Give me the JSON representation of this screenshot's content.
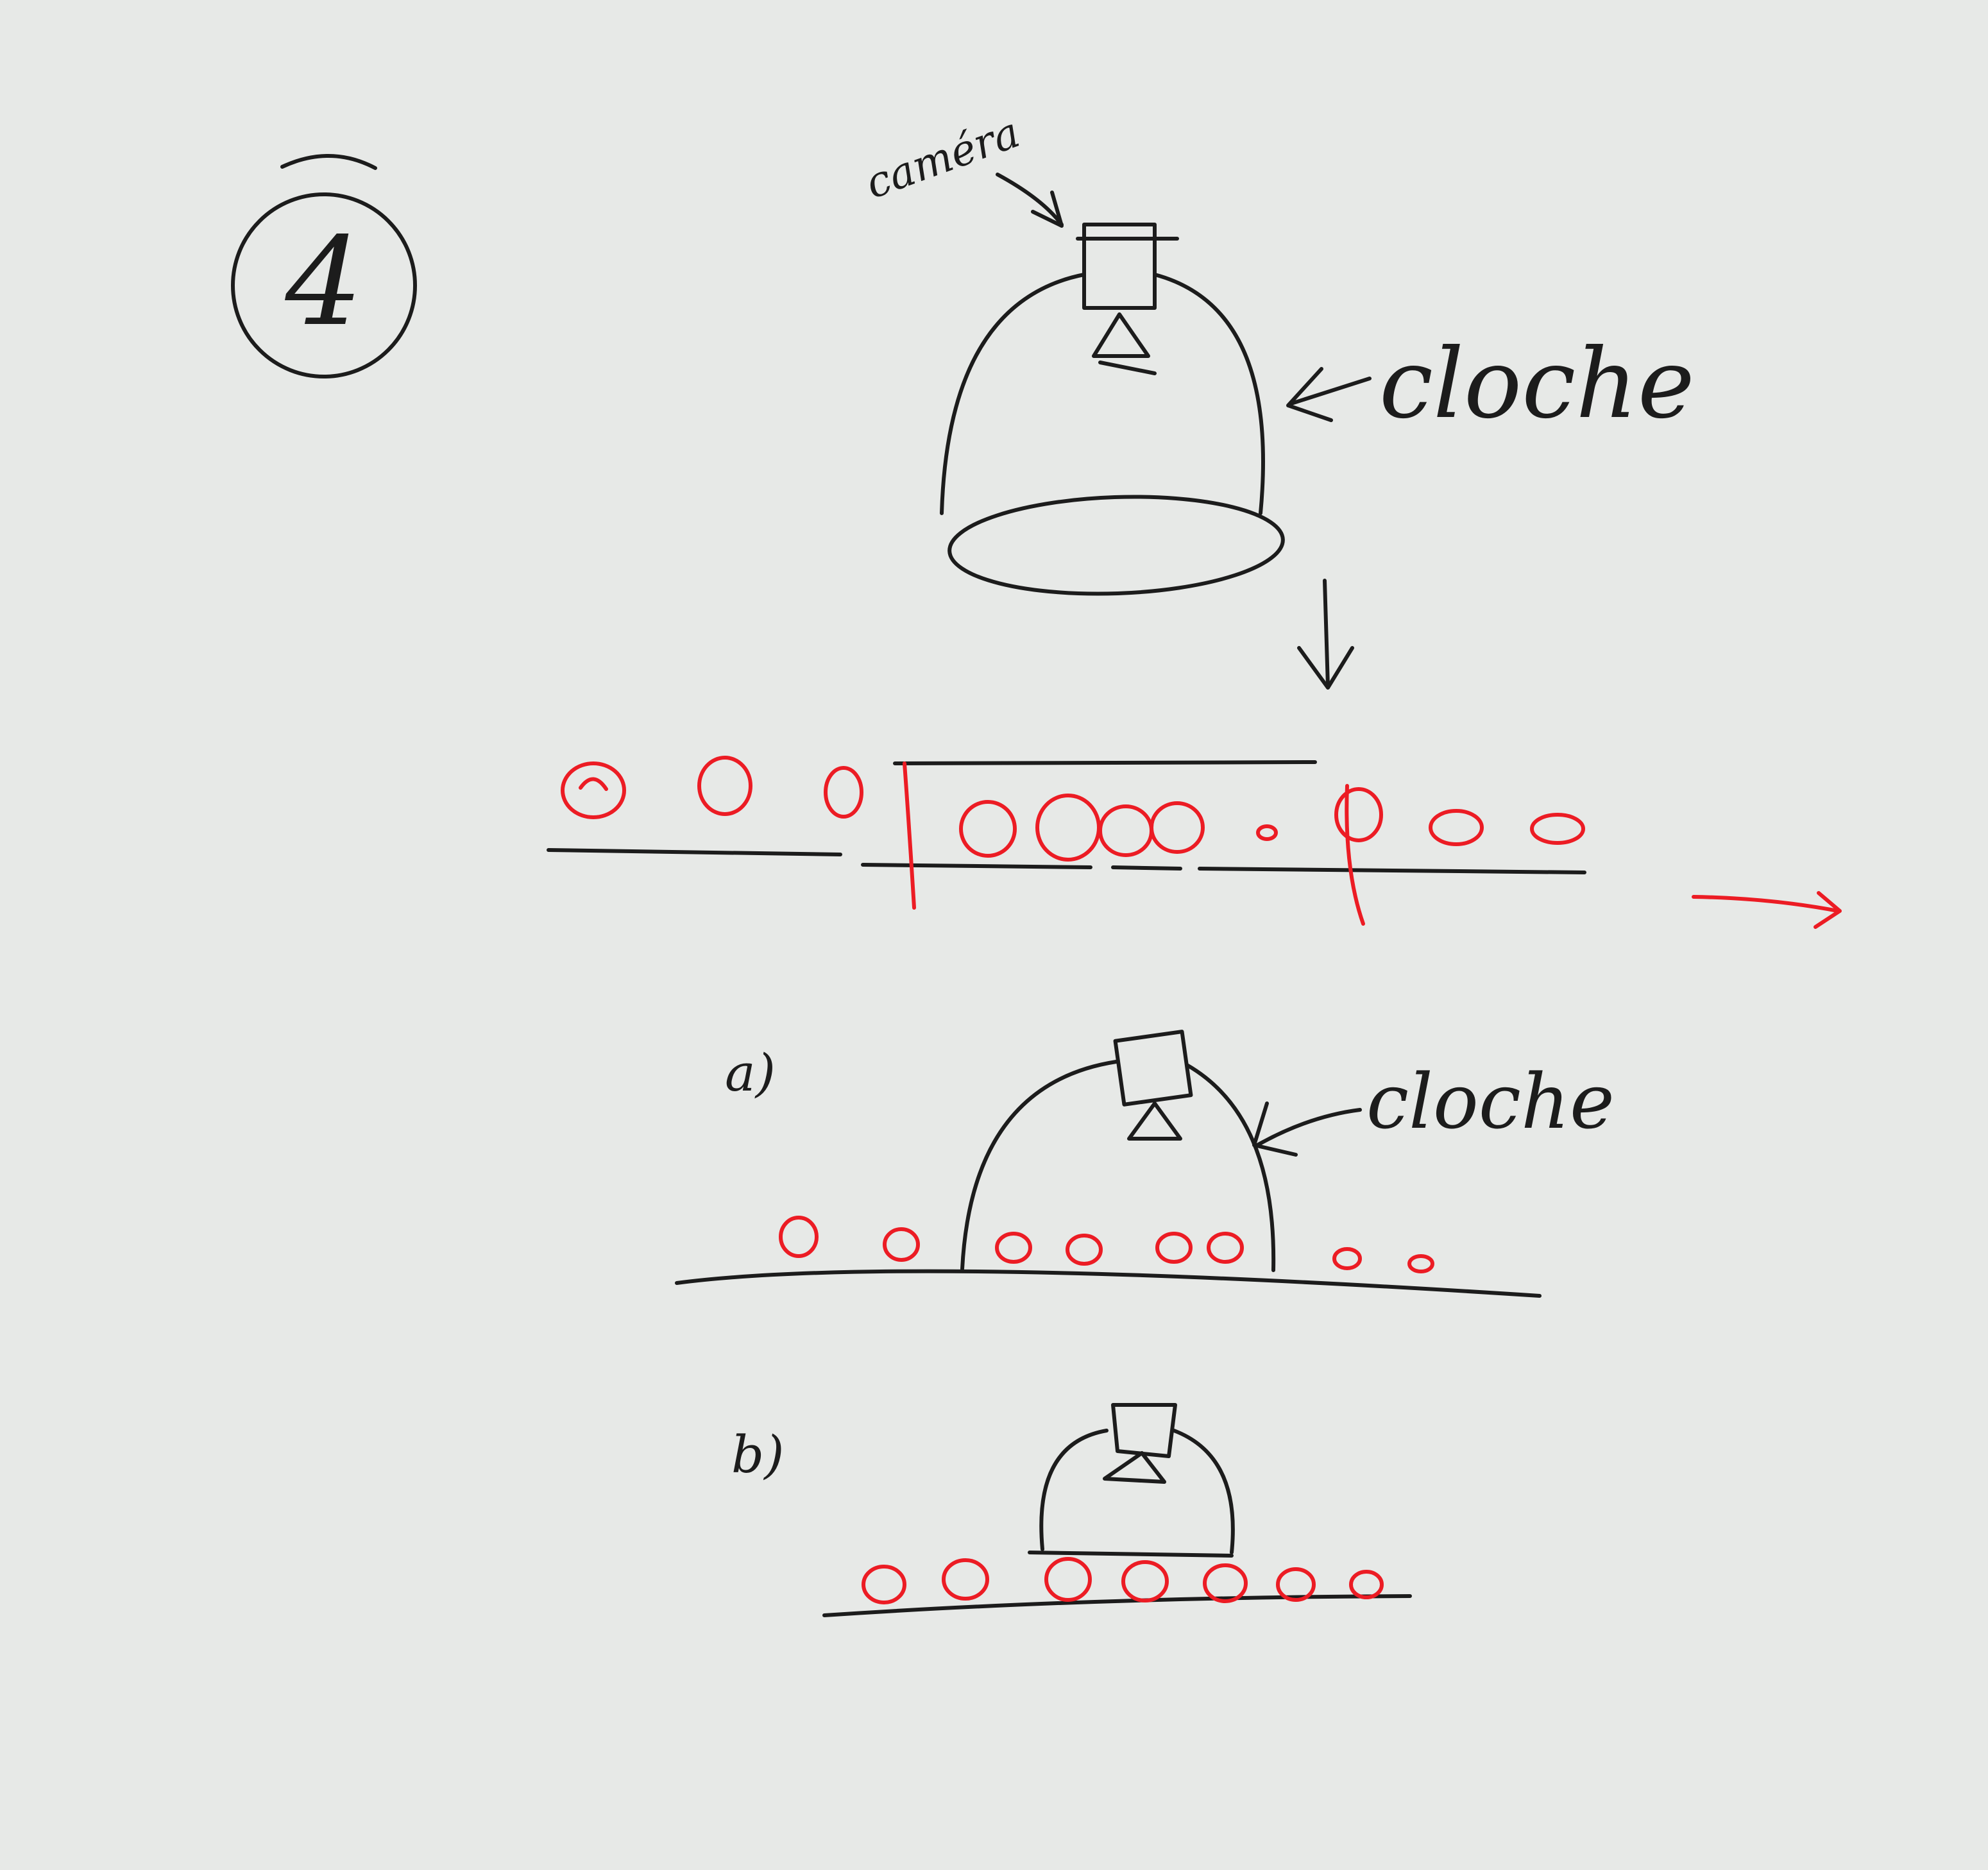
{
  "figure": {
    "number": "4",
    "label_camera": "caméra",
    "label_cloche_main": "cloche",
    "label_cloche_a": "cloche",
    "label_a": "a)",
    "label_b": "b)"
  },
  "colors": {
    "ink": "#1c1c1c",
    "products": "#ec1c24",
    "paper": "#e7e9e7"
  }
}
